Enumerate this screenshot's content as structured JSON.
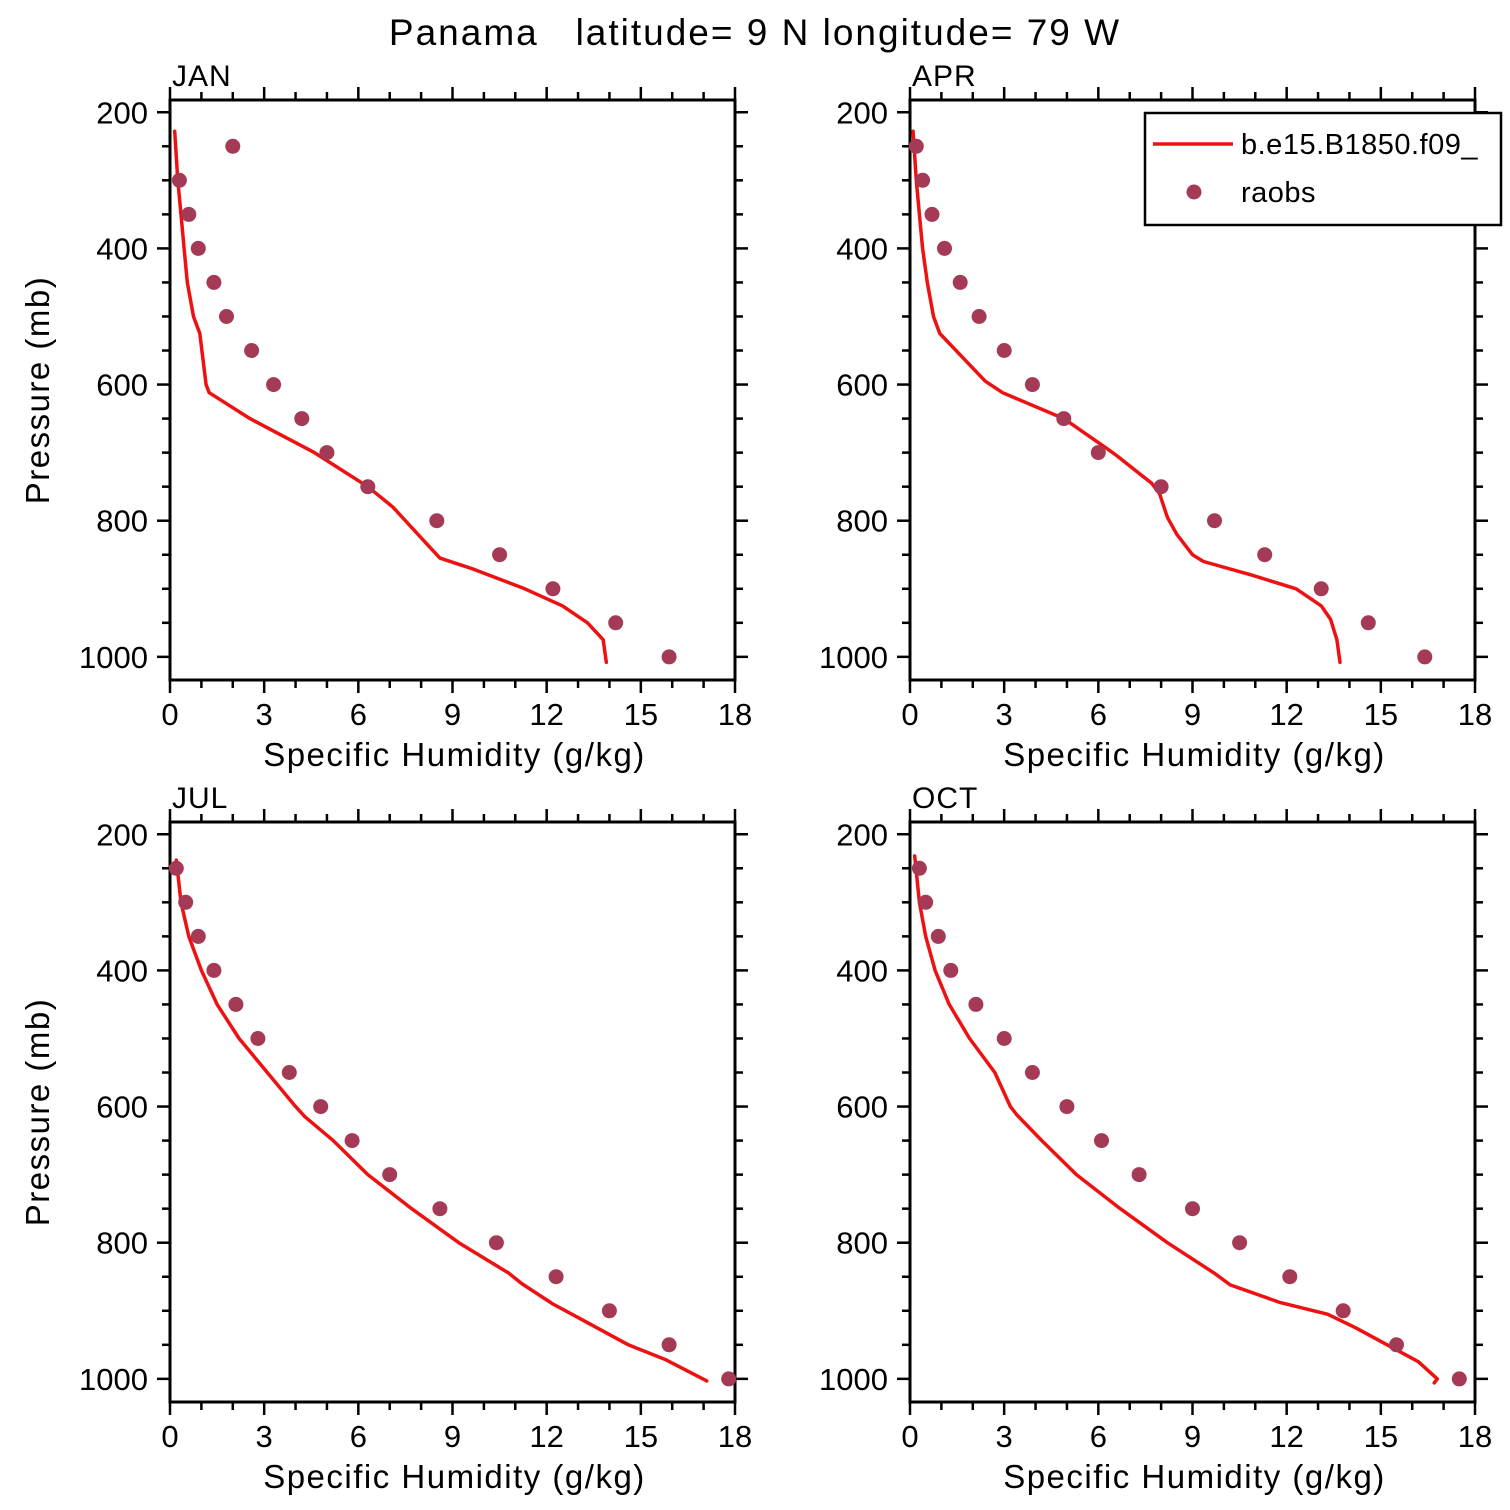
{
  "figure": {
    "title": "Panama   latitude= 9 N longitude= 79 W",
    "y_axis_label": "Pressure (mb)",
    "x_axis_label": "Specific Humidity (g/kg)"
  },
  "legend": {
    "position": "top-right-of-apr-panel",
    "entries": [
      {
        "type": "line",
        "label": "b.e15.B1850.f09_"
      },
      {
        "type": "dot",
        "label": "raobs"
      }
    ]
  },
  "colors": {
    "model_line": "#ee1111",
    "raobs_dots": "#a43a55",
    "frame": "#000000",
    "background": "#ffffff"
  },
  "chart_data": [
    {
      "type": "line",
      "panel": "JAN",
      "xlabel": "Specific Humidity (g/kg)",
      "ylabel": "Pressure (mb)",
      "xlim": [
        0,
        18
      ],
      "ylim": [
        182,
        1034
      ],
      "y_axis_inverted": true,
      "xticks": [
        0,
        3,
        6,
        9,
        12,
        15,
        18
      ],
      "yticks": [
        200,
        400,
        600,
        800,
        1000
      ],
      "xminor": 1,
      "yminor": 50,
      "grid": false,
      "series": [
        {
          "name": "b.e15.B1850.f09_",
          "type": "line",
          "color_key": "model_line",
          "points": [
            [
              0.15,
              228
            ],
            [
              0.25,
              300
            ],
            [
              0.35,
              350
            ],
            [
              0.45,
              400
            ],
            [
              0.55,
              450
            ],
            [
              0.75,
              500
            ],
            [
              0.95,
              525
            ],
            [
              1.15,
              600
            ],
            [
              1.25,
              612
            ],
            [
              2.55,
              650
            ],
            [
              4.6,
              700
            ],
            [
              6.3,
              750
            ],
            [
              7.1,
              780
            ],
            [
              7.5,
              800
            ],
            [
              8.3,
              840
            ],
            [
              8.6,
              855
            ],
            [
              9.6,
              870
            ],
            [
              11.3,
              900
            ],
            [
              12.5,
              925
            ],
            [
              13.3,
              950
            ],
            [
              13.8,
              975
            ],
            [
              13.9,
              1008
            ]
          ]
        },
        {
          "name": "raobs",
          "type": "scatter",
          "color_key": "raobs_dots",
          "points": [
            [
              2.0,
              250
            ],
            [
              0.3,
              300
            ],
            [
              0.6,
              350
            ],
            [
              0.9,
              400
            ],
            [
              1.4,
              450
            ],
            [
              1.8,
              500
            ],
            [
              2.6,
              550
            ],
            [
              3.3,
              600
            ],
            [
              4.2,
              650
            ],
            [
              5.0,
              700
            ],
            [
              6.3,
              750
            ],
            [
              8.5,
              800
            ],
            [
              10.5,
              850
            ],
            [
              12.2,
              900
            ],
            [
              14.2,
              950
            ],
            [
              15.9,
              1000
            ]
          ]
        }
      ]
    },
    {
      "type": "line",
      "panel": "APR",
      "xlabel": "Specific Humidity (g/kg)",
      "ylabel": "Pressure (mb)",
      "xlim": [
        0,
        18
      ],
      "ylim": [
        182,
        1034
      ],
      "y_axis_inverted": true,
      "xticks": [
        0,
        3,
        6,
        9,
        12,
        15,
        18
      ],
      "yticks": [
        200,
        400,
        600,
        800,
        1000
      ],
      "xminor": 1,
      "yminor": 50,
      "grid": false,
      "series": [
        {
          "name": "b.e15.B1850.f09_",
          "type": "line",
          "color_key": "model_line",
          "points": [
            [
              0.1,
              228
            ],
            [
              0.2,
              300
            ],
            [
              0.3,
              350
            ],
            [
              0.4,
              400
            ],
            [
              0.55,
              450
            ],
            [
              0.75,
              500
            ],
            [
              0.95,
              525
            ],
            [
              2.4,
              595
            ],
            [
              2.95,
              612
            ],
            [
              4.9,
              650
            ],
            [
              6.3,
              695
            ],
            [
              6.6,
              705
            ],
            [
              7.7,
              745
            ],
            [
              7.95,
              760
            ],
            [
              8.2,
              795
            ],
            [
              8.5,
              820
            ],
            [
              9.0,
              850
            ],
            [
              9.35,
              860
            ],
            [
              10.9,
              880
            ],
            [
              12.3,
              900
            ],
            [
              13.1,
              925
            ],
            [
              13.4,
              945
            ],
            [
              13.6,
              975
            ],
            [
              13.7,
              1008
            ]
          ]
        },
        {
          "name": "raobs",
          "type": "scatter",
          "color_key": "raobs_dots",
          "points": [
            [
              0.2,
              250
            ],
            [
              0.4,
              300
            ],
            [
              0.7,
              350
            ],
            [
              1.1,
              400
            ],
            [
              1.6,
              450
            ],
            [
              2.2,
              500
            ],
            [
              3.0,
              550
            ],
            [
              3.9,
              600
            ],
            [
              4.9,
              650
            ],
            [
              6.0,
              700
            ],
            [
              8.0,
              750
            ],
            [
              9.7,
              800
            ],
            [
              11.3,
              850
            ],
            [
              13.1,
              900
            ],
            [
              14.6,
              950
            ],
            [
              16.4,
              1000
            ]
          ]
        }
      ]
    },
    {
      "type": "line",
      "panel": "JUL",
      "xlabel": "Specific Humidity (g/kg)",
      "ylabel": "Pressure (mb)",
      "xlim": [
        0,
        18
      ],
      "ylim": [
        182,
        1034
      ],
      "y_axis_inverted": true,
      "xticks": [
        0,
        3,
        6,
        9,
        12,
        15,
        18
      ],
      "yticks": [
        200,
        400,
        600,
        800,
        1000
      ],
      "xminor": 1,
      "yminor": 50,
      "grid": false,
      "series": [
        {
          "name": "b.e15.B1850.f09_",
          "type": "line",
          "color_key": "model_line",
          "points": [
            [
              0.2,
              238
            ],
            [
              0.35,
              300
            ],
            [
              0.6,
              350
            ],
            [
              1.0,
              400
            ],
            [
              1.5,
              450
            ],
            [
              2.2,
              500
            ],
            [
              3.1,
              550
            ],
            [
              4.0,
              600
            ],
            [
              4.3,
              615
            ],
            [
              5.2,
              650
            ],
            [
              6.3,
              700
            ],
            [
              7.7,
              750
            ],
            [
              9.2,
              800
            ],
            [
              10.8,
              845
            ],
            [
              11.2,
              860
            ],
            [
              12.2,
              890
            ],
            [
              13.0,
              910
            ],
            [
              14.6,
              950
            ],
            [
              15.8,
              972
            ],
            [
              17.1,
              1003
            ]
          ]
        },
        {
          "name": "raobs",
          "type": "scatter",
          "color_key": "raobs_dots",
          "points": [
            [
              0.2,
              250
            ],
            [
              0.5,
              300
            ],
            [
              0.9,
              350
            ],
            [
              1.4,
              400
            ],
            [
              2.1,
              450
            ],
            [
              2.8,
              500
            ],
            [
              3.8,
              550
            ],
            [
              4.8,
              600
            ],
            [
              5.8,
              650
            ],
            [
              7.0,
              700
            ],
            [
              8.6,
              750
            ],
            [
              10.4,
              800
            ],
            [
              12.3,
              850
            ],
            [
              14.0,
              900
            ],
            [
              15.9,
              950
            ],
            [
              17.8,
              1000
            ]
          ]
        }
      ]
    },
    {
      "type": "line",
      "panel": "OCT",
      "xlabel": "Specific Humidity (g/kg)",
      "ylabel": "Pressure (mb)",
      "xlim": [
        0,
        18
      ],
      "ylim": [
        182,
        1034
      ],
      "y_axis_inverted": true,
      "xticks": [
        0,
        3,
        6,
        9,
        12,
        15,
        18
      ],
      "yticks": [
        200,
        400,
        600,
        800,
        1000
      ],
      "xminor": 1,
      "yminor": 50,
      "grid": false,
      "series": [
        {
          "name": "b.e15.B1850.f09_",
          "type": "line",
          "color_key": "model_line",
          "points": [
            [
              0.15,
              232
            ],
            [
              0.3,
              300
            ],
            [
              0.5,
              350
            ],
            [
              0.8,
              400
            ],
            [
              1.25,
              450
            ],
            [
              1.9,
              500
            ],
            [
              2.7,
              550
            ],
            [
              3.2,
              600
            ],
            [
              3.4,
              612
            ],
            [
              4.2,
              650
            ],
            [
              5.3,
              700
            ],
            [
              6.7,
              750
            ],
            [
              8.2,
              800
            ],
            [
              9.7,
              845
            ],
            [
              10.2,
              862
            ],
            [
              11.8,
              888
            ],
            [
              13.3,
              905
            ],
            [
              14.2,
              925
            ],
            [
              15.2,
              950
            ],
            [
              16.2,
              975
            ],
            [
              16.8,
              1000
            ],
            [
              16.7,
              1006
            ]
          ]
        },
        {
          "name": "raobs",
          "type": "scatter",
          "color_key": "raobs_dots",
          "points": [
            [
              0.3,
              250
            ],
            [
              0.5,
              300
            ],
            [
              0.9,
              350
            ],
            [
              1.3,
              400
            ],
            [
              2.1,
              450
            ],
            [
              3.0,
              500
            ],
            [
              3.9,
              550
            ],
            [
              5.0,
              600
            ],
            [
              6.1,
              650
            ],
            [
              7.3,
              700
            ],
            [
              9.0,
              750
            ],
            [
              10.5,
              800
            ],
            [
              12.1,
              850
            ],
            [
              13.8,
              900
            ],
            [
              15.5,
              950
            ],
            [
              17.5,
              1000
            ]
          ]
        }
      ]
    }
  ]
}
